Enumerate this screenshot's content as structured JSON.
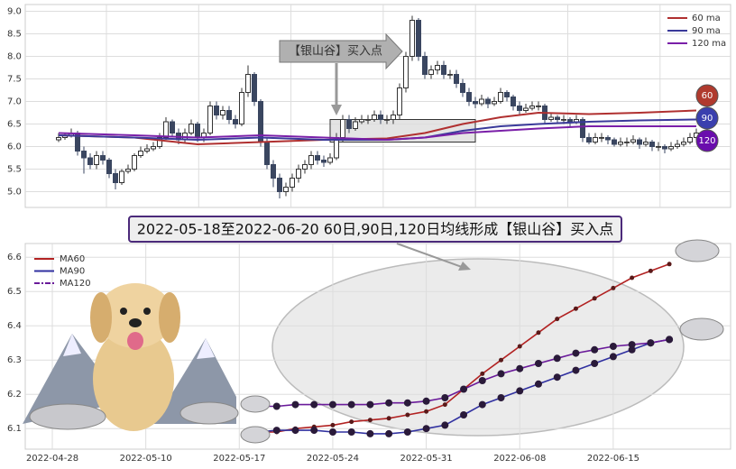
{
  "chart_data": [
    {
      "type": "candlestick",
      "open": [
        6.15,
        6.2,
        6.25,
        6.3,
        5.9,
        5.75,
        5.6,
        5.8,
        5.7,
        5.4,
        5.2,
        5.45,
        5.5,
        5.8,
        5.9,
        5.95,
        6.0,
        6.2,
        6.55,
        6.3,
        6.15,
        6.3,
        6.5,
        6.2,
        6.3,
        6.9,
        6.7,
        6.8,
        6.6,
        6.5,
        7.2,
        7.6,
        7.0,
        6.1,
        5.6,
        5.3,
        5.0,
        5.1,
        5.3,
        5.5,
        5.6,
        5.8,
        5.7,
        5.65,
        5.75,
        6.2,
        6.6,
        6.4,
        6.55,
        6.6,
        6.6,
        6.7,
        6.6,
        6.6,
        6.7,
        7.3,
        8.0,
        8.8,
        8.0,
        7.6,
        7.7,
        7.8,
        7.6,
        7.6,
        7.4,
        7.2,
        7.0,
        6.95,
        7.05,
        6.95,
        7.0,
        7.2,
        7.1,
        6.9,
        6.8,
        6.85,
        6.9,
        6.9,
        6.6,
        6.65,
        6.6,
        6.6,
        6.55,
        6.6,
        6.2,
        6.1,
        6.2,
        6.2,
        6.15,
        6.05,
        6.1,
        6.1,
        6.15,
        6.05,
        6.1,
        6.0,
        6.0,
        5.95,
        6.0,
        6.05,
        6.1,
        6.2
      ],
      "high": [
        6.3,
        6.3,
        6.4,
        6.35,
        6.0,
        5.85,
        5.9,
        5.9,
        5.75,
        5.5,
        5.5,
        5.6,
        5.85,
        6.0,
        6.05,
        6.1,
        6.3,
        6.65,
        6.6,
        6.4,
        6.4,
        6.6,
        6.55,
        6.4,
        7.0,
        7.0,
        6.9,
        6.9,
        6.7,
        7.3,
        7.8,
        7.65,
        7.05,
        6.2,
        5.7,
        5.4,
        5.2,
        5.4,
        5.6,
        5.7,
        5.9,
        5.9,
        5.8,
        5.85,
        6.3,
        6.7,
        6.7,
        6.65,
        6.7,
        6.7,
        6.8,
        6.8,
        6.7,
        6.8,
        7.4,
        8.1,
        8.9,
        8.85,
        8.1,
        7.8,
        7.9,
        7.9,
        7.7,
        7.7,
        7.5,
        7.3,
        7.1,
        7.15,
        7.1,
        7.1,
        7.3,
        7.25,
        7.15,
        7.0,
        6.95,
        7.0,
        7.0,
        6.95,
        6.75,
        6.7,
        6.7,
        6.65,
        6.7,
        6.65,
        6.3,
        6.3,
        6.3,
        6.25,
        6.2,
        6.2,
        6.2,
        6.25,
        6.2,
        6.2,
        6.15,
        6.1,
        6.05,
        6.1,
        6.15,
        6.2,
        6.3,
        6.4
      ],
      "low": [
        6.1,
        6.15,
        6.2,
        5.8,
        5.4,
        5.5,
        5.5,
        5.6,
        5.3,
        5.05,
        5.15,
        5.4,
        5.45,
        5.75,
        5.85,
        5.9,
        5.95,
        6.15,
        6.2,
        6.05,
        6.1,
        6.25,
        6.1,
        6.1,
        6.25,
        6.6,
        6.6,
        6.5,
        6.4,
        6.45,
        7.1,
        6.9,
        6.0,
        5.5,
        5.1,
        4.85,
        4.9,
        5.0,
        5.2,
        5.4,
        5.5,
        5.6,
        5.55,
        5.6,
        5.7,
        6.1,
        6.3,
        6.35,
        6.5,
        6.5,
        6.55,
        6.5,
        6.5,
        6.5,
        6.6,
        7.2,
        7.9,
        7.9,
        7.5,
        7.5,
        7.6,
        7.5,
        7.5,
        7.3,
        7.1,
        6.9,
        6.85,
        6.9,
        6.85,
        6.9,
        6.95,
        7.0,
        6.8,
        6.7,
        6.75,
        6.8,
        6.8,
        6.5,
        6.55,
        6.5,
        6.5,
        6.45,
        6.5,
        6.1,
        6.05,
        6.05,
        6.1,
        6.05,
        6.0,
        6.0,
        6.0,
        6.05,
        5.95,
        6.0,
        5.9,
        5.9,
        5.85,
        5.9,
        5.95,
        6.0,
        6.05,
        6.15
      ],
      "close": [
        6.2,
        6.25,
        6.3,
        5.9,
        5.75,
        5.6,
        5.8,
        5.7,
        5.4,
        5.2,
        5.45,
        5.5,
        5.8,
        5.9,
        5.95,
        6.0,
        6.2,
        6.55,
        6.3,
        6.15,
        6.3,
        6.5,
        6.2,
        6.3,
        6.9,
        6.7,
        6.8,
        6.6,
        6.5,
        7.2,
        7.6,
        7.0,
        6.1,
        5.6,
        5.3,
        5.0,
        5.1,
        5.3,
        5.5,
        5.6,
        5.8,
        5.7,
        5.65,
        5.75,
        6.2,
        6.6,
        6.4,
        6.55,
        6.6,
        6.6,
        6.7,
        6.6,
        6.6,
        6.7,
        7.3,
        8.0,
        8.8,
        8.0,
        7.6,
        7.7,
        7.8,
        7.6,
        7.6,
        7.4,
        7.2,
        7.0,
        6.95,
        7.05,
        6.95,
        7.0,
        7.2,
        7.1,
        6.9,
        6.8,
        6.85,
        6.9,
        6.9,
        6.6,
        6.65,
        6.6,
        6.6,
        6.55,
        6.6,
        6.2,
        6.1,
        6.2,
        6.2,
        6.15,
        6.05,
        6.1,
        6.1,
        6.15,
        6.05,
        6.1,
        6.0,
        6.0,
        5.95,
        6.0,
        6.05,
        6.1,
        6.2,
        6.3
      ],
      "series": [
        {
          "name": "60 ma",
          "color": "#b03030",
          "x": [
            0,
            12,
            22,
            32,
            42,
            52,
            58,
            64,
            70,
            76,
            84,
            92,
            101
          ],
          "values": [
            6.25,
            6.2,
            6.05,
            6.1,
            6.15,
            6.18,
            6.3,
            6.5,
            6.65,
            6.75,
            6.72,
            6.75,
            6.8
          ]
        },
        {
          "name": "90 ma",
          "color": "#3a3a9a",
          "x": [
            0,
            12,
            22,
            32,
            42,
            52,
            58,
            64,
            70,
            76,
            84,
            92,
            101
          ],
          "values": [
            6.25,
            6.2,
            6.15,
            6.2,
            6.15,
            6.15,
            6.2,
            6.35,
            6.45,
            6.5,
            6.55,
            6.58,
            6.6
          ]
        },
        {
          "name": "120 ma",
          "color": "#7a1fa8",
          "x": [
            0,
            12,
            22,
            32,
            42,
            52,
            58,
            64,
            70,
            76,
            84,
            92,
            101
          ],
          "values": [
            6.3,
            6.25,
            6.2,
            6.25,
            6.2,
            6.15,
            6.2,
            6.3,
            6.35,
            6.4,
            6.45,
            6.45,
            6.45
          ]
        }
      ],
      "ylim": [
        4.65,
        9.15
      ],
      "yticks": [
        {
          "value": 5,
          "label": "5.0"
        },
        5.5,
        {
          "value": 6,
          "label": "6.0"
        },
        6.5,
        {
          "value": 7,
          "label": "7.0"
        },
        7.5,
        {
          "value": 8,
          "label": "8.0"
        },
        8.5,
        {
          "value": 9,
          "label": "9.0"
        }
      ],
      "grid": true,
      "legend": "upper right",
      "annotation": "【银山谷】买入点",
      "highlight": {
        "x": [
          43,
          66
        ],
        "y": [
          6.1,
          6.6
        ]
      },
      "badges": [
        {
          "label": "60",
          "color": "#b03a2e"
        },
        {
          "label": "90",
          "color": "#3a3fae"
        },
        {
          "label": "120",
          "color": "#6a0dad"
        }
      ]
    },
    {
      "type": "line",
      "title": "2022-05-18至2022-06-20 60日,90日,120日均线形成【银山谷】买入点",
      "categories": [
        "2022-04-28",
        null,
        null,
        null,
        null,
        "2022-05-10",
        null,
        null,
        null,
        null,
        "2022-05-17",
        null,
        null,
        null,
        null,
        "2022-05-24",
        null,
        null,
        null,
        null,
        "2022-05-31",
        null,
        null,
        null,
        null,
        "2022-06-08",
        null,
        null,
        null,
        null,
        "2022-06-15",
        null,
        null,
        null
      ],
      "series": [
        {
          "name": "MA60",
          "color": "#b22222",
          "values": [
            null,
            null,
            null,
            null,
            null,
            null,
            null,
            null,
            null,
            null,
            null,
            6.09,
            6.09,
            6.1,
            6.105,
            6.11,
            6.12,
            6.125,
            6.13,
            6.14,
            6.15,
            6.17,
            6.215,
            6.26,
            6.3,
            6.34,
            6.38,
            6.42,
            6.45,
            6.48,
            6.51,
            6.54,
            6.56,
            6.58
          ]
        },
        {
          "name": "MA90",
          "color": "#3030a0",
          "values": [
            null,
            null,
            null,
            null,
            null,
            null,
            null,
            null,
            null,
            null,
            null,
            6.09,
            6.095,
            6.095,
            6.095,
            6.09,
            6.09,
            6.085,
            6.085,
            6.09,
            6.1,
            6.11,
            6.14,
            6.17,
            6.19,
            6.21,
            6.23,
            6.25,
            6.27,
            6.29,
            6.31,
            6.33,
            6.35,
            6.36
          ]
        },
        {
          "name": "MA120",
          "color": "#6a1b9a",
          "values": [
            null,
            null,
            null,
            null,
            null,
            null,
            null,
            null,
            null,
            null,
            null,
            6.165,
            6.165,
            6.17,
            6.17,
            6.17,
            6.17,
            6.17,
            6.175,
            6.175,
            6.18,
            6.19,
            6.215,
            6.24,
            6.26,
            6.275,
            6.29,
            6.305,
            6.32,
            6.33,
            6.34,
            6.345,
            6.35,
            6.36
          ]
        }
      ],
      "ylim": [
        6.04,
        6.64
      ],
      "yticks": [
        6.1,
        6.2,
        6.3,
        6.4,
        6.5,
        6.6
      ],
      "grid": true,
      "legend": "upper left"
    }
  ]
}
